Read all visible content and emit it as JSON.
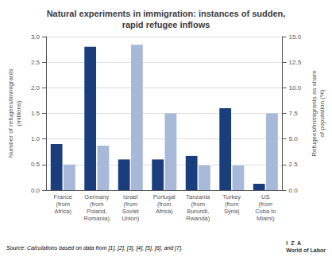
{
  "chart_data": {
    "type": "bar",
    "title": "Natural experiments in immigration: instances of sudden,\nrapid refugee inflows",
    "categories": [
      "France\n(from\nAfrica)",
      "Germany\n(from\nPoland,\nRomania)",
      "Israel\n(from\nSoviet\nUnion)",
      "Portugal\n(from\nAfrica)",
      "Tanzania\n(from\nBurundi,\nRwanda)",
      "Turkey\n(from\nSyria)",
      "US\n(from\nCuba to\nMiami)"
    ],
    "series": [
      {
        "color": "#1a3d7c",
        "values": [
          0.9,
          2.8,
          0.6,
          0.6,
          0.67,
          1.6,
          0.125
        ]
      },
      {
        "color": "#a8b8d8",
        "axis": "y2",
        "values": [
          2.5,
          4.35,
          14.2,
          7.5,
          2.4,
          2.4,
          7.5
        ]
      }
    ],
    "ylabel": "Number of refugees/immigrants\n(millions)",
    "y2label": "Refugees/immigrants as share\nof population (%)",
    "ylim": [
      0,
      3.0
    ],
    "yticks": [
      {
        "value": 0,
        "label": "0.0"
      },
      0.5,
      {
        "value": 1,
        "label": "1.0"
      },
      1.5,
      {
        "value": 2,
        "label": "2.0"
      },
      2.5,
      {
        "value": 3,
        "label": "3.0"
      }
    ],
    "y2lim": [
      0,
      15.0
    ],
    "y2ticks": [
      {
        "value": 0,
        "label": "0.0"
      },
      2.5,
      {
        "value": 5,
        "label": "5.0"
      },
      7.5,
      {
        "value": 10,
        "label": "10.0"
      },
      12.5,
      {
        "value": 15,
        "label": "15.0"
      }
    ],
    "grid": true,
    "annotations": [
      "Source: Calculations based on data from [1], [2], [3], [4], [5], [6], and [7].",
      "I  Z  A\nWorld of Labor"
    ]
  }
}
